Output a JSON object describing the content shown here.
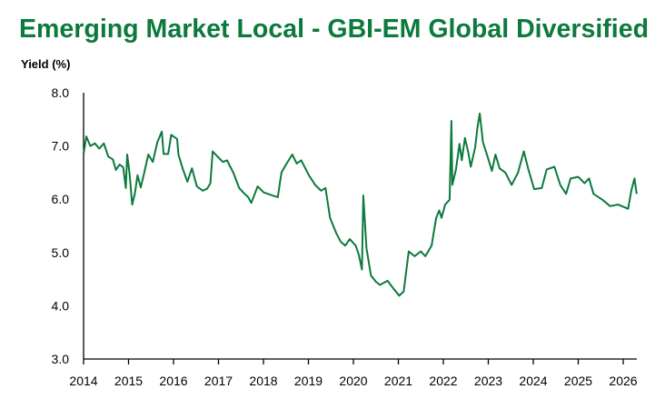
{
  "chart_data": {
    "type": "line",
    "title": "Emerging Market Local - GBI-EM Global Diversified",
    "xlabel": "",
    "ylabel": "Yield (%)",
    "xlim": [
      2014,
      2026.3
    ],
    "ylim": [
      3.0,
      8.0
    ],
    "grid": false,
    "legend": "none",
    "colors": {
      "line": "#0b7a3b",
      "title": "#0b7a3b"
    },
    "x_ticks": [
      "2014",
      "2015",
      "2016",
      "2017",
      "2018",
      "2019",
      "2020",
      "2021",
      "2022",
      "2023",
      "2024",
      "2025",
      "2026"
    ],
    "y_ticks": [
      "8.0",
      "7.0",
      "6.0",
      "5.0",
      "4.0",
      "3.0"
    ],
    "series": [
      {
        "name": "Yield",
        "points": [
          [
            2014.0,
            6.85
          ],
          [
            2014.06,
            7.18
          ],
          [
            2014.15,
            7.0
          ],
          [
            2014.25,
            7.05
          ],
          [
            2014.35,
            6.95
          ],
          [
            2014.45,
            7.05
          ],
          [
            2014.55,
            6.8
          ],
          [
            2014.65,
            6.75
          ],
          [
            2014.72,
            6.55
          ],
          [
            2014.8,
            6.65
          ],
          [
            2014.88,
            6.6
          ],
          [
            2014.94,
            6.21
          ],
          [
            2014.97,
            6.84
          ],
          [
            2015.02,
            6.5
          ],
          [
            2015.08,
            5.9
          ],
          [
            2015.14,
            6.1
          ],
          [
            2015.2,
            6.45
          ],
          [
            2015.27,
            6.22
          ],
          [
            2015.35,
            6.5
          ],
          [
            2015.44,
            6.84
          ],
          [
            2015.54,
            6.7
          ],
          [
            2015.64,
            7.07
          ],
          [
            2015.74,
            7.27
          ],
          [
            2015.78,
            6.85
          ],
          [
            2015.88,
            6.85
          ],
          [
            2015.95,
            7.21
          ],
          [
            2016.08,
            7.13
          ],
          [
            2016.11,
            6.84
          ],
          [
            2016.21,
            6.56
          ],
          [
            2016.31,
            6.33
          ],
          [
            2016.41,
            6.58
          ],
          [
            2016.52,
            6.24
          ],
          [
            2016.65,
            6.16
          ],
          [
            2016.75,
            6.2
          ],
          [
            2016.82,
            6.3
          ],
          [
            2016.87,
            6.9
          ],
          [
            2016.99,
            6.79
          ],
          [
            2017.1,
            6.7
          ],
          [
            2017.19,
            6.73
          ],
          [
            2017.33,
            6.5
          ],
          [
            2017.46,
            6.21
          ],
          [
            2017.56,
            6.12
          ],
          [
            2017.66,
            6.04
          ],
          [
            2017.73,
            5.93
          ],
          [
            2017.87,
            6.24
          ],
          [
            2018.0,
            6.13
          ],
          [
            2018.1,
            6.1
          ],
          [
            2018.2,
            6.07
          ],
          [
            2018.32,
            6.04
          ],
          [
            2018.4,
            6.5
          ],
          [
            2018.5,
            6.65
          ],
          [
            2018.64,
            6.84
          ],
          [
            2018.74,
            6.67
          ],
          [
            2018.84,
            6.73
          ],
          [
            2019.01,
            6.45
          ],
          [
            2019.15,
            6.27
          ],
          [
            2019.28,
            6.16
          ],
          [
            2019.38,
            6.21
          ],
          [
            2019.48,
            5.65
          ],
          [
            2019.62,
            5.36
          ],
          [
            2019.72,
            5.2
          ],
          [
            2019.82,
            5.13
          ],
          [
            2019.92,
            5.25
          ],
          [
            2020.05,
            5.13
          ],
          [
            2020.12,
            4.96
          ],
          [
            2020.19,
            4.68
          ],
          [
            2020.22,
            6.07
          ],
          [
            2020.29,
            5.08
          ],
          [
            2020.39,
            4.57
          ],
          [
            2020.5,
            4.45
          ],
          [
            2020.59,
            4.39
          ],
          [
            2020.76,
            4.47
          ],
          [
            2020.9,
            4.31
          ],
          [
            2021.02,
            4.19
          ],
          [
            2021.12,
            4.27
          ],
          [
            2021.23,
            5.02
          ],
          [
            2021.36,
            4.93
          ],
          [
            2021.5,
            5.02
          ],
          [
            2021.6,
            4.93
          ],
          [
            2021.74,
            5.13
          ],
          [
            2021.84,
            5.65
          ],
          [
            2021.91,
            5.79
          ],
          [
            2021.96,
            5.65
          ],
          [
            2022.04,
            5.9
          ],
          [
            2022.14,
            5.99
          ],
          [
            2022.18,
            7.47
          ],
          [
            2022.2,
            6.27
          ],
          [
            2022.28,
            6.56
          ],
          [
            2022.36,
            7.04
          ],
          [
            2022.41,
            6.73
          ],
          [
            2022.48,
            7.15
          ],
          [
            2022.55,
            6.9
          ],
          [
            2022.61,
            6.61
          ],
          [
            2022.71,
            6.98
          ],
          [
            2022.76,
            7.35
          ],
          [
            2022.81,
            7.61
          ],
          [
            2022.88,
            7.07
          ],
          [
            2022.98,
            6.81
          ],
          [
            2023.08,
            6.53
          ],
          [
            2023.16,
            6.84
          ],
          [
            2023.25,
            6.58
          ],
          [
            2023.38,
            6.5
          ],
          [
            2023.52,
            6.27
          ],
          [
            2023.66,
            6.5
          ],
          [
            2023.79,
            6.9
          ],
          [
            2023.89,
            6.56
          ],
          [
            2024.02,
            6.19
          ],
          [
            2024.19,
            6.21
          ],
          [
            2024.3,
            6.56
          ],
          [
            2024.47,
            6.61
          ],
          [
            2024.6,
            6.27
          ],
          [
            2024.73,
            6.1
          ],
          [
            2024.83,
            6.39
          ],
          [
            2025.0,
            6.42
          ],
          [
            2025.14,
            6.3
          ],
          [
            2025.24,
            6.39
          ],
          [
            2025.34,
            6.1
          ],
          [
            2025.54,
            5.99
          ],
          [
            2025.71,
            5.87
          ],
          [
            2025.88,
            5.9
          ],
          [
            2026.0,
            5.86
          ],
          [
            2026.11,
            5.82
          ],
          [
            2026.18,
            6.16
          ],
          [
            2026.25,
            6.39
          ],
          [
            2026.3,
            6.1
          ]
        ]
      }
    ]
  }
}
